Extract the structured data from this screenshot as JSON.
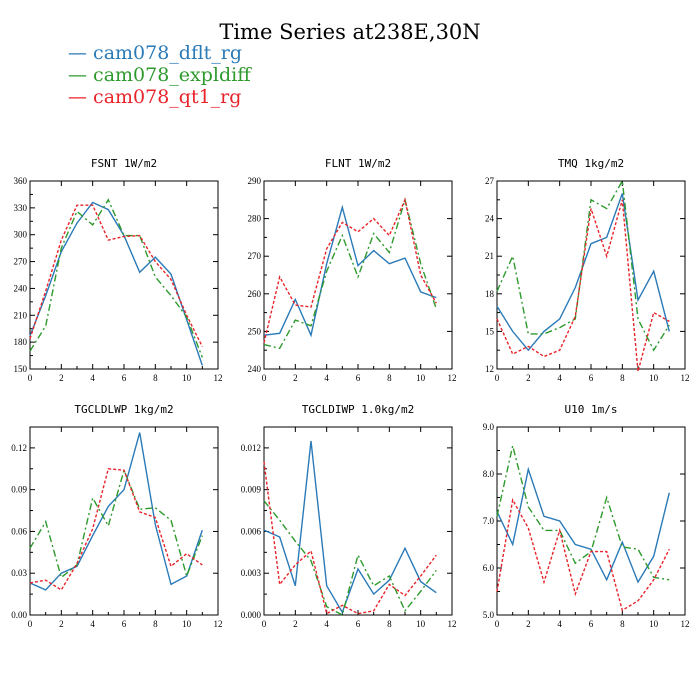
{
  "title": "Time Series at238E,30N",
  "legend": [
    {
      "name": "cam078_dflt_rg",
      "color": "#2a7ab8"
    },
    {
      "name": "cam078_expldiff",
      "color": "#2e9a2e"
    },
    {
      "name": "cam078_qt1_rg",
      "color": "#e8232a"
    }
  ],
  "chart_data": [
    {
      "type": "line",
      "title": "FSNT   1W/m2",
      "xlim": [
        0,
        12
      ],
      "xticks": [
        "0",
        "2",
        "4",
        "6",
        "8",
        "10",
        "12"
      ],
      "ylim": [
        150,
        360
      ],
      "yticks": [
        "150",
        "180",
        "210",
        "240",
        "270",
        "300",
        "330",
        "360"
      ],
      "x": [
        0,
        1,
        2,
        3,
        4,
        5,
        6,
        7,
        8,
        9,
        10,
        11
      ],
      "series": [
        {
          "name": "cam078_dflt_rg",
          "values": [
            187,
            232,
            281,
            313,
            336,
            328,
            299,
            258,
            275,
            256,
            205,
            154
          ]
        },
        {
          "name": "cam078_expldiff",
          "values": [
            170,
            198,
            285,
            326,
            311,
            339,
            299,
            299,
            253,
            232,
            208,
            163
          ]
        },
        {
          "name": "cam078_qt1_rg",
          "values": [
            184,
            237,
            294,
            333,
            333,
            294,
            298,
            299,
            270,
            250,
            210,
            175
          ]
        }
      ]
    },
    {
      "type": "line",
      "title": "FLNT   1W/m2",
      "xlim": [
        0,
        12
      ],
      "xticks": [
        "0",
        "2",
        "4",
        "6",
        "8",
        "10",
        "12"
      ],
      "ylim": [
        240,
        290
      ],
      "yticks": [
        "240",
        "250",
        "260",
        "270",
        "280",
        "290"
      ],
      "x": [
        0,
        1,
        2,
        3,
        4,
        5,
        6,
        7,
        8,
        9,
        10,
        11
      ],
      "series": [
        {
          "name": "cam078_dflt_rg",
          "values": [
            249,
            249.5,
            258.5,
            249,
            268,
            283,
            267.5,
            271.5,
            268,
            269.5,
            260.5,
            259
          ]
        },
        {
          "name": "cam078_expldiff",
          "values": [
            246.5,
            245.5,
            253,
            251.5,
            266,
            275.5,
            264.5,
            276,
            271,
            285,
            268,
            256
          ]
        },
        {
          "name": "cam078_qt1_rg",
          "values": [
            247,
            264.5,
            257,
            256.5,
            272,
            279,
            276.5,
            280,
            275.5,
            285,
            265,
            257.5
          ]
        }
      ]
    },
    {
      "type": "line",
      "title": "TMQ   1kg/m2",
      "xlim": [
        0,
        12
      ],
      "xticks": [
        "0",
        "2",
        "4",
        "6",
        "8",
        "10",
        "12"
      ],
      "ylim": [
        12,
        27
      ],
      "yticks": [
        "12",
        "15",
        "18",
        "21",
        "24",
        "27"
      ],
      "x": [
        0,
        1,
        2,
        3,
        4,
        5,
        6,
        7,
        8,
        9,
        10,
        11
      ],
      "series": [
        {
          "name": "cam078_dflt_rg",
          "values": [
            17,
            15,
            13.5,
            15,
            16,
            18.5,
            22,
            22.5,
            26,
            17.5,
            19.8,
            15
          ]
        },
        {
          "name": "cam078_expldiff",
          "values": [
            18.2,
            21,
            14.8,
            14.8,
            15.3,
            16,
            25.5,
            24.8,
            27,
            16,
            13.5,
            15.5
          ]
        },
        {
          "name": "cam078_qt1_rg",
          "values": [
            16,
            13.2,
            13.8,
            13,
            13.5,
            16.2,
            24.8,
            21,
            25.5,
            11.8,
            16.5,
            15.8
          ]
        }
      ]
    },
    {
      "type": "line",
      "title": "TGCLDLWP   1kg/m2",
      "xlim": [
        0,
        12
      ],
      "xticks": [
        "0",
        "2",
        "4",
        "6",
        "8",
        "10",
        "12"
      ],
      "ylim": [
        0,
        0.135
      ],
      "yticks": [
        "0.00",
        "0.03",
        "0.06",
        "0.09",
        "0.12"
      ],
      "x": [
        0,
        1,
        2,
        3,
        4,
        5,
        6,
        7,
        8,
        9,
        10,
        11
      ],
      "series": [
        {
          "name": "cam078_dflt_rg",
          "values": [
            0.023,
            0.018,
            0.03,
            0.035,
            0.057,
            0.078,
            0.09,
            0.131,
            0.065,
            0.022,
            0.028,
            0.061
          ]
        },
        {
          "name": "cam078_expldiff",
          "values": [
            0.048,
            0.067,
            0.027,
            0.036,
            0.084,
            0.064,
            0.104,
            0.076,
            0.077,
            0.068,
            0.028,
            0.057
          ]
        },
        {
          "name": "cam078_qt1_rg",
          "values": [
            0.023,
            0.025,
            0.018,
            0.037,
            0.062,
            0.105,
            0.104,
            0.074,
            0.07,
            0.035,
            0.044,
            0.036
          ]
        }
      ]
    },
    {
      "type": "line",
      "title": "TGCLDIWP   1.0kg/m2",
      "xlim": [
        0,
        12
      ],
      "xticks": [
        "0",
        "2",
        "4",
        "6",
        "8",
        "10",
        "12"
      ],
      "ylim": [
        0,
        0.0135
      ],
      "yticks": [
        "0.000",
        "0.003",
        "0.006",
        "0.009",
        "0.012"
      ],
      "x": [
        0,
        1,
        2,
        3,
        4,
        5,
        6,
        7,
        8,
        9,
        10,
        11
      ],
      "series": [
        {
          "name": "cam078_dflt_rg",
          "values": [
            0.0061,
            0.0056,
            0.0021,
            0.0125,
            0.0021,
            0.0002,
            0.0033,
            0.0015,
            0.0025,
            0.0048,
            0.0024,
            0.0016
          ]
        },
        {
          "name": "cam078_expldiff",
          "values": [
            0.0082,
            0.0068,
            0.0053,
            0.0039,
            0.0006,
            0.0,
            0.0043,
            0.0021,
            0.0028,
            0.0003,
            0.0017,
            0.0032
          ]
        },
        {
          "name": "cam078_qt1_rg",
          "values": [
            0.011,
            0.0022,
            0.0036,
            0.0046,
            0.0001,
            0.0007,
            0.0001,
            0.0003,
            0.0022,
            0.0014,
            0.0028,
            0.0043
          ]
        }
      ]
    },
    {
      "type": "line",
      "title": "U10   1m/s",
      "xlim": [
        0,
        12
      ],
      "xticks": [
        "0",
        "2",
        "4",
        "6",
        "8",
        "10",
        "12"
      ],
      "ylim": [
        5,
        9
      ],
      "yticks": [
        "5.0",
        "6.0",
        "7.0",
        "8.0",
        "9.0"
      ],
      "x": [
        0,
        1,
        2,
        3,
        4,
        5,
        6,
        7,
        8,
        9,
        10,
        11
      ],
      "series": [
        {
          "name": "cam078_dflt_rg",
          "values": [
            7.2,
            6.5,
            8.1,
            7.1,
            7.0,
            6.5,
            6.4,
            5.75,
            6.55,
            5.7,
            6.25,
            7.6
          ]
        },
        {
          "name": "cam078_expldiff",
          "values": [
            7.1,
            8.6,
            7.3,
            6.8,
            6.8,
            6.1,
            6.35,
            7.5,
            6.45,
            6.4,
            5.8,
            5.75
          ]
        },
        {
          "name": "cam078_qt1_rg",
          "values": [
            5.5,
            7.45,
            6.85,
            5.7,
            6.8,
            5.45,
            6.35,
            6.35,
            5.1,
            5.3,
            5.75,
            6.4
          ]
        }
      ]
    }
  ]
}
